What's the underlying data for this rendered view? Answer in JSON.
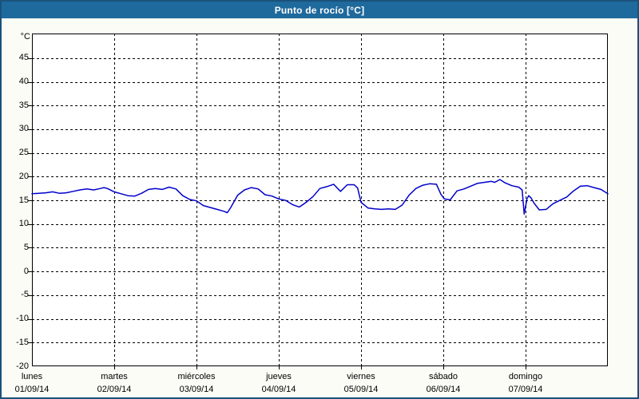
{
  "window": {
    "title": "Punto de rocío [°C]"
  },
  "colors": {
    "frame_border": "#1A527B",
    "titlebar_bg": "#1F6A9D",
    "titlebar_text": "#FFFFFF",
    "page_bg": "#FCFCF6",
    "plot_bg": "#FFFFFF",
    "plot_border": "#000000",
    "gridline": "#000000",
    "series_line": "#0000CC",
    "label_text": "#000000"
  },
  "chart_data": {
    "type": "line",
    "title": "Punto de rocío [°C]",
    "y_unit": "°C",
    "y_ticks": [
      45,
      40,
      35,
      30,
      25,
      20,
      15,
      10,
      5,
      0,
      -5,
      -10,
      -15,
      -20
    ],
    "ylim": [
      -20,
      50.2
    ],
    "x_unit": "hours since lunes 01/09/14 00:00",
    "xlim": [
      0,
      168
    ],
    "grid": true,
    "legend": "none",
    "x_day_ticks": [
      {
        "hour": 0,
        "weekday": "lunes",
        "date": "01/09/14"
      },
      {
        "hour": 24,
        "weekday": "martes",
        "date": "02/09/14"
      },
      {
        "hour": 48,
        "weekday": "miércoles",
        "date": "03/09/14"
      },
      {
        "hour": 72,
        "weekday": "jueves",
        "date": "04/09/14"
      },
      {
        "hour": 96,
        "weekday": "viernes",
        "date": "05/09/14"
      },
      {
        "hour": 120,
        "weekday": "sábado",
        "date": "06/09/14"
      },
      {
        "hour": 144,
        "weekday": "domingo",
        "date": "07/09/14"
      }
    ],
    "series": [
      {
        "name": "Punto de rocío",
        "color": "#0000CC",
        "points": [
          [
            0,
            16.4
          ],
          [
            2,
            16.5
          ],
          [
            4,
            16.6
          ],
          [
            6,
            16.8
          ],
          [
            8,
            16.5
          ],
          [
            10,
            16.6
          ],
          [
            12,
            16.9
          ],
          [
            14,
            17.2
          ],
          [
            16,
            17.4
          ],
          [
            18,
            17.2
          ],
          [
            20,
            17.5
          ],
          [
            21,
            17.7
          ],
          [
            22,
            17.5
          ],
          [
            24,
            16.8
          ],
          [
            26,
            16.4
          ],
          [
            28,
            16.0
          ],
          [
            30,
            15.9
          ],
          [
            32,
            16.5
          ],
          [
            34,
            17.3
          ],
          [
            36,
            17.5
          ],
          [
            38,
            17.3
          ],
          [
            40,
            17.8
          ],
          [
            42,
            17.4
          ],
          [
            44,
            16.0
          ],
          [
            46,
            15.2
          ],
          [
            48,
            14.9
          ],
          [
            50,
            13.9
          ],
          [
            52,
            13.5
          ],
          [
            54,
            13.1
          ],
          [
            56,
            12.7
          ],
          [
            57,
            12.4
          ],
          [
            58,
            13.5
          ],
          [
            60,
            16.1
          ],
          [
            62,
            17.2
          ],
          [
            64,
            17.7
          ],
          [
            66,
            17.4
          ],
          [
            68,
            16.2
          ],
          [
            70,
            15.9
          ],
          [
            72,
            15.3
          ],
          [
            74,
            15.0
          ],
          [
            76,
            14.1
          ],
          [
            78,
            13.6
          ],
          [
            80,
            14.6
          ],
          [
            82,
            15.8
          ],
          [
            84,
            17.5
          ],
          [
            86,
            17.9
          ],
          [
            88,
            18.4
          ],
          [
            90,
            16.9
          ],
          [
            92,
            18.3
          ],
          [
            94,
            18.3
          ],
          [
            95,
            17.6
          ],
          [
            96,
            14.6
          ],
          [
            98,
            13.4
          ],
          [
            100,
            13.2
          ],
          [
            102,
            13.1
          ],
          [
            104,
            13.2
          ],
          [
            106,
            13.1
          ],
          [
            108,
            14.0
          ],
          [
            110,
            16.1
          ],
          [
            112,
            17.5
          ],
          [
            114,
            18.2
          ],
          [
            116,
            18.5
          ],
          [
            118,
            18.4
          ],
          [
            119.3,
            16.3
          ],
          [
            120.3,
            15.3
          ],
          [
            122,
            15.1
          ],
          [
            124,
            17.0
          ],
          [
            126,
            17.4
          ],
          [
            128,
            18.0
          ],
          [
            130,
            18.6
          ],
          [
            132,
            18.8
          ],
          [
            134,
            19.0
          ],
          [
            135,
            18.8
          ],
          [
            136.5,
            19.4
          ],
          [
            138,
            18.7
          ],
          [
            140,
            18.1
          ],
          [
            142,
            17.8
          ],
          [
            143,
            17.2
          ],
          [
            143.6,
            12.1
          ],
          [
            144.4,
            15.3
          ],
          [
            144.9,
            16.0
          ],
          [
            145.6,
            15.5
          ],
          [
            146.5,
            14.4
          ],
          [
            148,
            13.0
          ],
          [
            150,
            13.1
          ],
          [
            152,
            14.3
          ],
          [
            154,
            15.0
          ],
          [
            156,
            15.7
          ],
          [
            158,
            17.0
          ],
          [
            160,
            18.0
          ],
          [
            162,
            18.1
          ],
          [
            164,
            17.7
          ],
          [
            166,
            17.3
          ],
          [
            168,
            16.4
          ]
        ]
      }
    ]
  }
}
